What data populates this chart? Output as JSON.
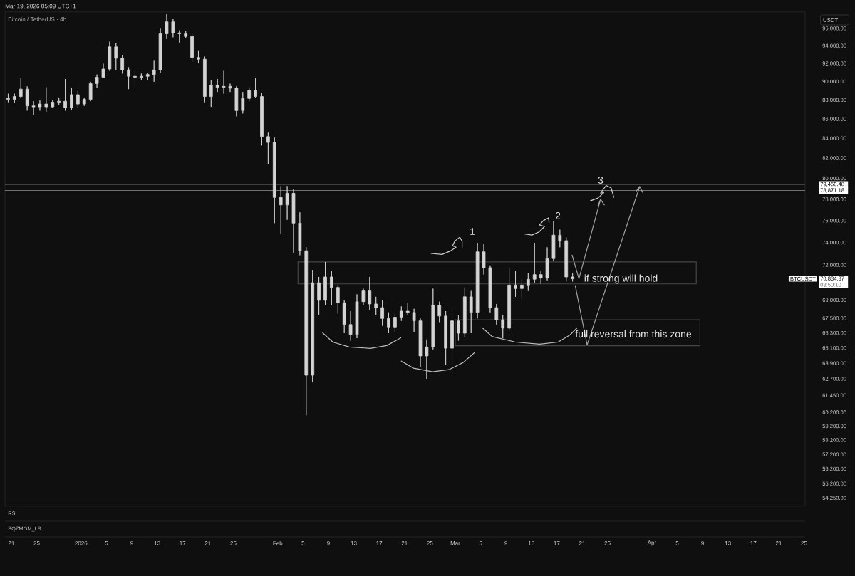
{
  "chart_data": {
    "type": "candlestick",
    "title": "Bitcoin / TetherUS · 4h",
    "ylabel": "USDT",
    "log": true,
    "xlim": [
      "2025-12-20",
      "2026-04-25T04:00"
    ],
    "xticks": [
      {
        "value": "2025-12-21",
        "label": "21"
      },
      {
        "value": "2025-12-25",
        "label": "25"
      },
      {
        "value": "2026-01-01",
        "label": "2026"
      },
      {
        "value": "2026-01-05",
        "label": "5"
      },
      {
        "value": "2026-01-09",
        "label": "9"
      },
      {
        "value": "2026-01-13",
        "label": "13"
      },
      {
        "value": "2026-01-17",
        "label": "17"
      },
      {
        "value": "2026-01-21",
        "label": "21"
      },
      {
        "value": "2026-01-25",
        "label": "25"
      },
      {
        "value": "2026-02-01",
        "label": "Feb"
      },
      {
        "value": "2026-02-05",
        "label": "5"
      },
      {
        "value": "2026-02-09",
        "label": "9"
      },
      {
        "value": "2026-02-13",
        "label": "13"
      },
      {
        "value": "2026-02-17",
        "label": "17"
      },
      {
        "value": "2026-02-21",
        "label": "21"
      },
      {
        "value": "2026-02-25",
        "label": "25"
      },
      {
        "value": "2026-03-01",
        "label": "Mar"
      },
      {
        "value": "2026-03-05",
        "label": "5"
      },
      {
        "value": "2026-03-09",
        "label": "9"
      },
      {
        "value": "2026-03-13",
        "label": "13"
      },
      {
        "value": "2026-03-17",
        "label": "17"
      },
      {
        "value": "2026-03-21",
        "label": "21"
      },
      {
        "value": "2026-03-25",
        "label": "25"
      },
      {
        "value": "2026-04-01",
        "label": "Apr"
      },
      {
        "value": "2026-04-05",
        "label": "5"
      },
      {
        "value": "2026-04-09",
        "label": "9"
      },
      {
        "value": "2026-04-13",
        "label": "13"
      },
      {
        "value": "2026-04-17",
        "label": "17"
      },
      {
        "value": "2026-04-21",
        "label": "21"
      },
      {
        "value": "2026-04-25",
        "label": "25"
      }
    ],
    "ylim": [
      53730,
      97970
    ],
    "yticks": [
      {
        "value": 96000,
        "label": "96,000.00"
      },
      {
        "value": 94000,
        "label": "94,000.00"
      },
      {
        "value": 92000,
        "label": "92,000.00"
      },
      {
        "value": 90000,
        "label": "90,000.00"
      },
      {
        "value": 88000,
        "label": "88,000.00"
      },
      {
        "value": 86000,
        "label": "86,000.00"
      },
      {
        "value": 84000,
        "label": "84,000.00"
      },
      {
        "value": 82000,
        "label": "82,000.00"
      },
      {
        "value": 80000,
        "label": "80,000.00"
      },
      {
        "value": 78000,
        "label": "78,000.00"
      },
      {
        "value": 76000,
        "label": "76,000.00"
      },
      {
        "value": 74000,
        "label": "74,000.00"
      },
      {
        "value": 72000,
        "label": "72,000.00"
      },
      {
        "value": 69000,
        "label": "69,000.00"
      },
      {
        "value": 67500,
        "label": "67,500.00"
      },
      {
        "value": 66300,
        "label": "66,300.00"
      },
      {
        "value": 65100,
        "label": "65,100.00"
      },
      {
        "value": 63900,
        "label": "63,900.00"
      },
      {
        "value": 62700,
        "label": "62,700.00"
      },
      {
        "value": 61450,
        "label": "61,450.00"
      },
      {
        "value": 60200,
        "label": "60,200.00"
      },
      {
        "value": 59200,
        "label": "59,200.00"
      },
      {
        "value": 58200,
        "label": "58,200.00"
      },
      {
        "value": 57200,
        "label": "57,200.00"
      },
      {
        "value": 56200,
        "label": "56,200.00"
      },
      {
        "value": 55200,
        "label": "55,200.00"
      },
      {
        "value": 54250,
        "label": "54,250.00"
      }
    ],
    "series": [
      {
        "type": "line",
        "color": "#464646",
        "x": [
          "2026-02-04T05:00",
          "2026-04-08T00:00",
          "2026-04-08T00:00",
          "2026-02-04T05:00"
        ],
        "values": [
          72300,
          72300,
          70400,
          70400
        ]
      },
      {
        "type": "line",
        "color": "#464646",
        "x": [
          "2026-02-04T05:00",
          "2026-02-04T05:00"
        ],
        "values": [
          70400,
          72300
        ]
      },
      {
        "type": "line",
        "color": "#464646",
        "x": [
          "2026-03-01T00:00",
          "2026-04-08T14:00",
          "2026-04-08T14:00",
          "2026-03-01T00:00"
        ],
        "values": [
          67400,
          67400,
          65300,
          65300
        ]
      },
      {
        "type": "line",
        "color": "#464646",
        "x": [
          "2026-03-01T00:00",
          "2026-03-01T00:00"
        ],
        "values": [
          65300,
          67400
        ]
      },
      {
        "type": "candlestick",
        "color": "#d4d4d4",
        "x": [
          "2025-12-20T12:00",
          "2025-12-21T12:00",
          "2025-12-22T12:00",
          "2025-12-23T12:00",
          "2025-12-24T12:00",
          "2025-12-25T12:00",
          "2025-12-26T12:00",
          "2025-12-27T12:00",
          "2025-12-28T12:00",
          "2025-12-29T12:00",
          "2025-12-30T12:00",
          "2025-12-31T12:00",
          "2026-01-01T12:00",
          "2026-01-02T12:00",
          "2026-01-03T12:00",
          "2026-01-04T12:00",
          "2026-01-05T12:00",
          "2026-01-06T12:00",
          "2026-01-07T12:00",
          "2026-01-08T12:00",
          "2026-01-09T12:00",
          "2026-01-10T12:00",
          "2026-01-11T12:00",
          "2026-01-12T12:00",
          "2026-01-13T12:00",
          "2026-01-14T12:00",
          "2026-01-15T12:00",
          "2026-01-16T12:00",
          "2026-01-17T12:00",
          "2026-01-18T12:00",
          "2026-01-19T12:00",
          "2026-01-20T12:00",
          "2026-01-21T12:00",
          "2026-01-22T12:00",
          "2026-01-23T12:00",
          "2026-01-24T12:00",
          "2026-01-25T12:00",
          "2026-01-26T12:00",
          "2026-01-27T12:00",
          "2026-01-28T12:00",
          "2026-01-29T12:00",
          "2026-01-30T12:00",
          "2026-01-31T12:00",
          "2026-02-01T12:00",
          "2026-02-02T12:00",
          "2026-02-03T12:00",
          "2026-02-04T12:00",
          "2026-02-05T12:00",
          "2026-02-06T12:00",
          "2026-02-07T12:00",
          "2026-02-08T12:00",
          "2026-02-09T12:00",
          "2026-02-10T12:00",
          "2026-02-11T12:00",
          "2026-02-12T12:00",
          "2026-02-13T12:00",
          "2026-02-14T12:00",
          "2026-02-15T12:00",
          "2026-02-16T12:00",
          "2026-02-17T12:00",
          "2026-02-18T12:00",
          "2026-02-19T12:00",
          "2026-02-20T12:00",
          "2026-02-21T12:00",
          "2026-02-22T12:00",
          "2026-02-23T12:00",
          "2026-02-24T12:00",
          "2026-02-25T12:00",
          "2026-02-26T12:00",
          "2026-02-27T12:00",
          "2026-02-28T12:00",
          "2026-03-01T12:00",
          "2026-03-02T12:00",
          "2026-03-03T12:00",
          "2026-03-04T12:00",
          "2026-03-05T12:00",
          "2026-03-06T12:00",
          "2026-03-07T12:00",
          "2026-03-08T12:00",
          "2026-03-09T12:00",
          "2026-03-10T12:00",
          "2026-03-11T12:00",
          "2026-03-12T12:00",
          "2026-03-13T12:00",
          "2026-03-14T12:00",
          "2026-03-15T12:00",
          "2026-03-16T12:00",
          "2026-03-17T12:00",
          "2026-03-18T12:00",
          "2026-03-19T12:00"
        ],
        "ohlc": [
          [
            88200,
            88700,
            87800,
            88100
          ],
          [
            88100,
            88700,
            87700,
            88400
          ],
          [
            88400,
            90400,
            88200,
            89200
          ],
          [
            89200,
            89500,
            86900,
            87400
          ],
          [
            87400,
            87900,
            86450,
            87300
          ],
          [
            87300,
            88000,
            86900,
            87600
          ],
          [
            87600,
            89400,
            86800,
            87300
          ],
          [
            87300,
            88000,
            87200,
            87800
          ],
          [
            87800,
            88300,
            87500,
            87900
          ],
          [
            87900,
            90300,
            86900,
            87200
          ],
          [
            87200,
            89300,
            87000,
            88600
          ],
          [
            88600,
            89000,
            87200,
            87600
          ],
          [
            87600,
            88300,
            87400,
            88100
          ],
          [
            88100,
            90000,
            87900,
            89800
          ],
          [
            89800,
            90800,
            89300,
            90500
          ],
          [
            90500,
            92000,
            90400,
            91400
          ],
          [
            91400,
            94500,
            91200,
            93900
          ],
          [
            93900,
            94300,
            91300,
            92600
          ],
          [
            92600,
            93000,
            90900,
            91300
          ],
          [
            91300,
            91600,
            89200,
            90600
          ],
          [
            90600,
            91200,
            89500,
            90500
          ],
          [
            90500,
            90900,
            90200,
            90600
          ],
          [
            90600,
            91000,
            90200,
            90800
          ],
          [
            90800,
            92400,
            90000,
            91300
          ],
          [
            91300,
            96000,
            91000,
            95400
          ],
          [
            95400,
            97700,
            94800,
            96800
          ],
          [
            96800,
            97200,
            95000,
            95500
          ],
          [
            95500,
            95800,
            94400,
            95400
          ],
          [
            95400,
            95700,
            94900,
            95100
          ],
          [
            95100,
            95500,
            92200,
            92700
          ],
          [
            92700,
            93500,
            92100,
            92500
          ],
          [
            92500,
            92800,
            87800,
            88400
          ],
          [
            88400,
            90200,
            87300,
            89600
          ],
          [
            89600,
            90300,
            88900,
            89400
          ],
          [
            89400,
            91200,
            88700,
            89500
          ],
          [
            89500,
            89800,
            88900,
            89300
          ],
          [
            89300,
            89500,
            86300,
            86900
          ],
          [
            86900,
            88900,
            86600,
            88200
          ],
          [
            88200,
            89400,
            87900,
            89100
          ],
          [
            89100,
            90400,
            88300,
            88400
          ],
          [
            88400,
            88800,
            83300,
            84200
          ],
          [
            84200,
            84600,
            81400,
            83600
          ],
          [
            83600,
            84100,
            75800,
            78200
          ],
          [
            78200,
            79300,
            74800,
            77500
          ],
          [
            77500,
            79300,
            76100,
            78600
          ],
          [
            78600,
            79000,
            73100,
            75800
          ],
          [
            75800,
            76800,
            72900,
            73300
          ],
          [
            73300,
            73600,
            60000,
            63000
          ],
          [
            63000,
            71600,
            62500,
            70500
          ],
          [
            70500,
            71000,
            67800,
            69000
          ],
          [
            69000,
            72300,
            68600,
            71000
          ],
          [
            71000,
            71500,
            68600,
            70100
          ],
          [
            70100,
            70300,
            67900,
            68800
          ],
          [
            68800,
            69000,
            66300,
            67000
          ],
          [
            67000,
            68100,
            65700,
            66200
          ],
          [
            66200,
            69500,
            65900,
            68900
          ],
          [
            68900,
            70000,
            68600,
            69800
          ],
          [
            69800,
            71000,
            68200,
            68700
          ],
          [
            68700,
            69300,
            67800,
            68400
          ],
          [
            68400,
            69000,
            66900,
            67500
          ],
          [
            67500,
            68000,
            66300,
            66800
          ],
          [
            66800,
            67900,
            66400,
            67600
          ],
          [
            67600,
            68500,
            67300,
            68100
          ],
          [
            68100,
            68800,
            67800,
            68000
          ],
          [
            68000,
            68300,
            66400,
            67300
          ],
          [
            67300,
            67500,
            63600,
            64500
          ],
          [
            64500,
            65800,
            62700,
            65200
          ],
          [
            65200,
            70000,
            65000,
            68600
          ],
          [
            68600,
            68900,
            67200,
            67700
          ],
          [
            67700,
            68100,
            63800,
            65100
          ],
          [
            65100,
            68000,
            63100,
            67300
          ],
          [
            67300,
            67800,
            65700,
            66300
          ],
          [
            66300,
            70100,
            66000,
            69300
          ],
          [
            69300,
            69800,
            66300,
            68000
          ],
          [
            68000,
            74000,
            67500,
            73200
          ],
          [
            73200,
            73900,
            71200,
            71800
          ],
          [
            71800,
            72000,
            68000,
            68400
          ],
          [
            68400,
            68700,
            67000,
            67400
          ],
          [
            67400,
            67800,
            65900,
            66700
          ],
          [
            66700,
            71800,
            66500,
            70300
          ],
          [
            70300,
            71500,
            69300,
            70000
          ],
          [
            70000,
            70800,
            69200,
            70300
          ],
          [
            70300,
            71300,
            69800,
            70800
          ],
          [
            70800,
            74000,
            70500,
            71200
          ],
          [
            71200,
            71500,
            70400,
            70900
          ],
          [
            70900,
            73600,
            70700,
            72600
          ],
          [
            72600,
            76000,
            72400,
            74700
          ],
          [
            74700,
            75200,
            73600,
            74200
          ],
          [
            74200,
            74500,
            70600,
            71000
          ],
          [
            71000,
            71300,
            70600,
            70834.37
          ]
        ]
      },
      {
        "type": "line",
        "color": "#bdbdbd",
        "x": [
          "2026-02-08T02:00",
          "2026-02-09T17:00",
          "2026-02-12T07:00",
          "2026-02-15T14:00",
          "2026-02-18T05:00",
          "2026-02-20T10:00"
        ],
        "values": [
          66330,
          65590,
          65200,
          65090,
          65310,
          65930
        ]
      },
      {
        "type": "line",
        "color": "#bdbdbd",
        "x": [
          "2026-02-20T12:00",
          "2026-02-22T10:00",
          "2026-02-25T10:00",
          "2026-02-28T00:00",
          "2026-03-02T06:00",
          "2026-03-04T01:00"
        ],
        "values": [
          64090,
          63540,
          63270,
          63430,
          63980,
          64750
        ]
      },
      {
        "type": "line",
        "color": "#bdbdbd",
        "x": [
          "2026-03-05T07:00",
          "2026-03-06T19:00",
          "2026-03-10T12:00",
          "2026-03-14T07:00",
          "2026-03-17T05:00",
          "2026-03-19T02:00",
          "2026-03-20T05:00"
        ],
        "values": [
          66730,
          66040,
          65590,
          65420,
          65590,
          66160,
          66730
        ]
      },
      {
        "type": "line",
        "color": "#cfcfcf",
        "x": [
          "2026-02-25T05:00",
          "2026-02-26T22:00",
          "2026-02-28T05:00",
          "2026-03-01T03:00",
          "2026-02-28T14:00",
          "2026-02-28T22:00",
          "2026-03-01T17:00",
          "2026-03-02T02:00",
          "2026-03-02T02:00"
        ],
        "values": [
          73050,
          72970,
          73260,
          73600,
          73740,
          74160,
          74520,
          74160,
          73600
        ]
      },
      {
        "type": "line",
        "color": "#cfcfcf",
        "x": [
          "2026-03-11T19:00",
          "2026-03-13T02:00",
          "2026-03-14T05:00",
          "2026-03-15T02:00",
          "2026-03-14T07:00",
          "2026-03-14T22:00",
          "2026-03-15T17:00",
          "2026-03-15T19:00"
        ],
        "values": [
          74810,
          74710,
          74990,
          75500,
          75630,
          76040,
          76290,
          75890
        ]
      },
      {
        "type": "line",
        "color": "#cfcfcf",
        "x": [
          "2026-03-22T07:00",
          "2026-03-23T12:00",
          "2026-03-24T10:00",
          "2026-03-23T22:00",
          "2026-03-24T19:00",
          "2026-03-25T14:00",
          "2026-03-26T00:00"
        ],
        "values": [
          77880,
          78150,
          78660,
          78620,
          79350,
          79120,
          78220
        ]
      },
      {
        "type": "line",
        "color": "#a3a3a3",
        "x": [
          "2026-03-19T10:00",
          "2026-03-20T12:00",
          "2026-03-23T22:00",
          "2026-03-23T12:00",
          "2026-03-23T22:00",
          "2026-03-24T12:00"
        ],
        "values": [
          72910,
          70850,
          78040,
          77430,
          78040,
          77500
        ]
      },
      {
        "type": "line",
        "color": "#a3a3a3",
        "x": [
          "2026-03-19T22:00",
          "2026-03-21T19:00",
          "2026-03-30T02:00",
          "2026-03-29T12:00",
          "2026-03-30T02:00",
          "2026-03-30T14:00"
        ],
        "values": [
          70260,
          65370,
          79250,
          78780,
          79250,
          78660
        ]
      }
    ],
    "ref_lines": [
      {
        "axis": "y",
        "value": 79450.48,
        "label": "79,450.48",
        "color": "#8c8c8c"
      },
      {
        "axis": "y",
        "value": 78871.18,
        "label": "78,871.18",
        "color": "#8c8c8c"
      }
    ],
    "annotations": [
      "Mar 19, 2026 05:09 UTC+1",
      "RSI",
      "SQZMOM_LB",
      "BTCUSDT",
      "70,834.37",
      "03:50:10",
      "1",
      "2",
      "3",
      "if strong will hold",
      "full reversal from this zone"
    ]
  }
}
